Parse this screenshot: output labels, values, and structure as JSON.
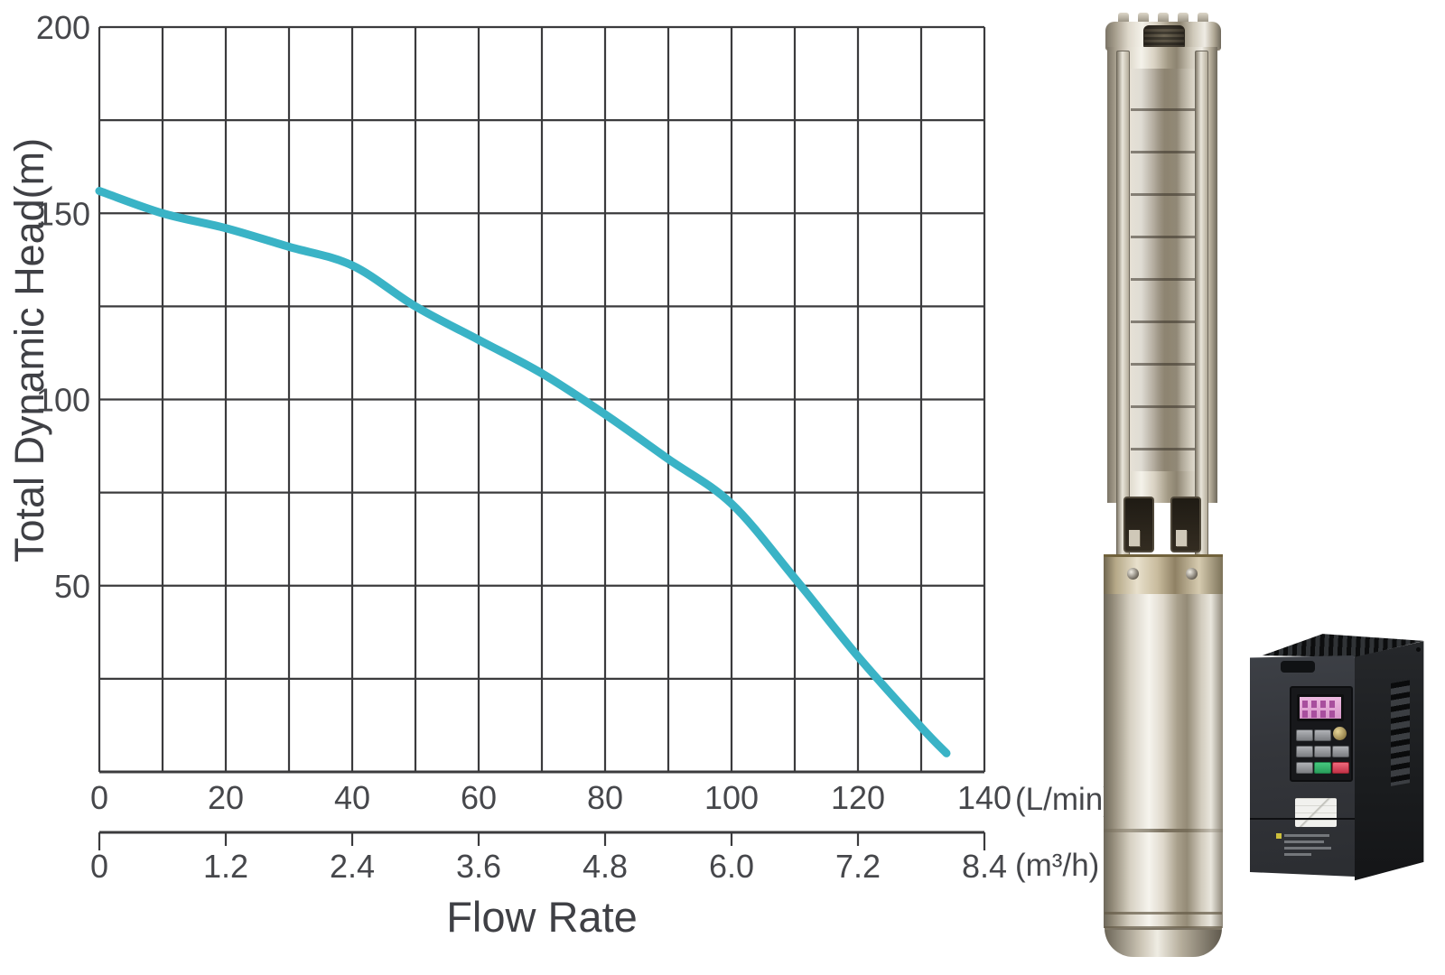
{
  "colors": {
    "curve": "#3ab3c6",
    "grid": "#3b3b3d",
    "text": "#46474b"
  },
  "chart_data": {
    "type": "line",
    "title": "",
    "xlabel": "Flow Rate",
    "ylabel": "Total Dynamic Head(m)",
    "grid": true,
    "legend": false,
    "x_axis_primary": {
      "unit": "(L/min)",
      "max": 140,
      "grid_step": 10,
      "tick_step": 20,
      "ticks": [
        "0",
        "20",
        "40",
        "60",
        "80",
        "100",
        "120",
        "140"
      ]
    },
    "x_axis_secondary": {
      "unit": "(m³/h)",
      "max": 8.4,
      "ticks": [
        "0",
        "1.2",
        "2.4",
        "3.6",
        "4.8",
        "6.0",
        "7.2",
        "8.4"
      ]
    },
    "y_axis": {
      "ylim": [
        0,
        200
      ],
      "grid_step": 25,
      "tick_step": 50,
      "ticks": [
        "50",
        "100",
        "150",
        "200"
      ]
    },
    "series": [
      {
        "name": "curve",
        "color": "#3ab3c6",
        "x": [
          0,
          10,
          20,
          30,
          40,
          50,
          60,
          70,
          80,
          90,
          100,
          110,
          120,
          130,
          134
        ],
        "y": [
          156,
          150,
          146,
          141,
          136,
          125,
          116,
          107,
          96,
          84,
          72,
          52,
          31,
          12,
          5
        ]
      }
    ]
  }
}
